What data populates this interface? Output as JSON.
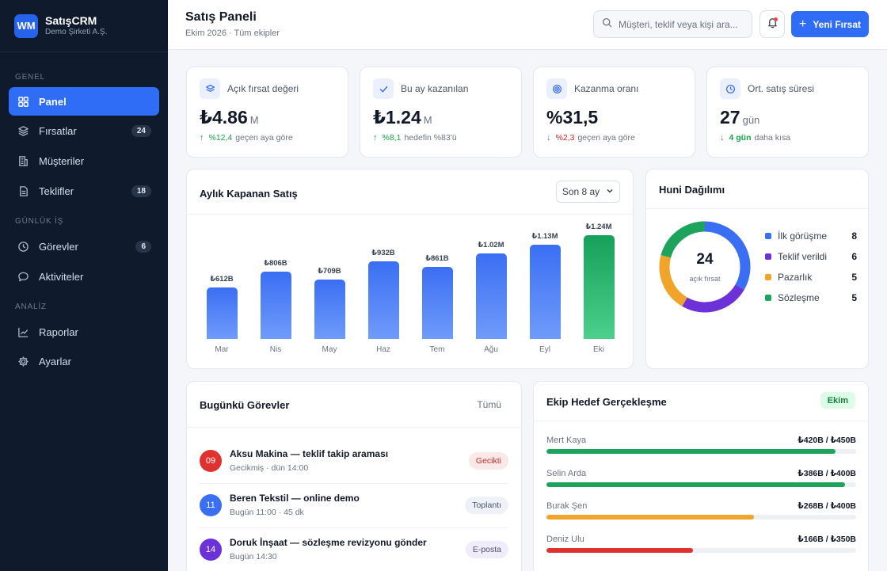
{
  "brand": {
    "logo": "WM",
    "name": "SatışCRM",
    "company": "Demo Şirketi A.Ş."
  },
  "sidebar": {
    "sections": [
      {
        "label": "GENEL"
      },
      {
        "label": "GÜNLÜK İŞ"
      },
      {
        "label": "ANALİZ"
      }
    ],
    "items": [
      {
        "label": "Panel",
        "icon": "grid-icon",
        "active": true
      },
      {
        "label": "Fırsatlar",
        "icon": "layers-icon",
        "count": "24"
      },
      {
        "label": "Müşteriler",
        "icon": "building-icon"
      },
      {
        "label": "Teklifler",
        "icon": "document-icon",
        "count": "18"
      },
      {
        "label": "Görevler",
        "icon": "clock-icon",
        "count": "6"
      },
      {
        "label": "Aktiviteler",
        "icon": "chat-icon"
      },
      {
        "label": "Raporlar",
        "icon": "chart-line-icon"
      },
      {
        "label": "Ayarlar",
        "icon": "gear-icon"
      }
    ]
  },
  "header": {
    "title": "Satış Paneli",
    "subtitle": "Ekim 2026 · Tüm ekipler",
    "search_placeholder": "Müşteri, teklif veya kişi ara...",
    "new_button": "Yeni Fırsat"
  },
  "kpis": [
    {
      "label": "Açık fırsat değeri",
      "icon": "layers-icon",
      "value": "₺4.86",
      "unit": "M",
      "trend": "up",
      "delta": "%12,4",
      "note": "geçen aya göre"
    },
    {
      "label": "Bu ay kazanılan",
      "icon": "check-icon",
      "value": "₺1.24",
      "unit": "M",
      "trend": "up",
      "delta": "%8,1",
      "note": "hedefin %83'ü"
    },
    {
      "label": "Kazanma oranı",
      "icon": "target-icon",
      "value": "%31,5",
      "unit": "",
      "trend": "down",
      "delta": "%2,3",
      "note": "geçen aya göre"
    },
    {
      "label": "Ort. satış süresi",
      "icon": "clock-icon",
      "value": "27",
      "unit": "gün",
      "trend": "down-good",
      "delta": "4 gün",
      "note": "daha kısa"
    }
  ],
  "monthly": {
    "title": "Aylık Kapanan Satış",
    "range": "Son 8 ay"
  },
  "chart_data": {
    "type": "bar",
    "title": "Aylık Kapanan Satış",
    "categories": [
      "Mar",
      "Nis",
      "May",
      "Haz",
      "Tem",
      "Ağu",
      "Eyl",
      "Eki"
    ],
    "values": [
      612,
      806,
      709,
      932,
      861,
      1020,
      1130,
      1240
    ],
    "value_labels": [
      "₺612B",
      "₺806B",
      "₺709B",
      "₺932B",
      "₺861B",
      "₺1.02M",
      "₺1.13M",
      "₺1.24M"
    ],
    "units": "₺ bin",
    "highlight_index": 7,
    "colors": {
      "bar": "#3b6ff3",
      "highlight": "#16a05a"
    }
  },
  "funnel": {
    "title": "Huni Dağılımı",
    "total": "24",
    "total_label": "açık fırsat",
    "stages": [
      {
        "name": "İlk görüşme",
        "value": 8,
        "color": "#3b6ff3"
      },
      {
        "name": "Teklif verildi",
        "value": 6,
        "color": "#6d31d8"
      },
      {
        "name": "Pazarlık",
        "value": 5,
        "color": "#f0a52a"
      },
      {
        "name": "Sözleşme",
        "value": 5,
        "color": "#1ea35d"
      }
    ]
  },
  "tasks": {
    "title": "Bugünkü Görevler",
    "all_link": "Tümü",
    "items": [
      {
        "day": "09",
        "title": "Aksu Makina — teklif takip araması",
        "sub": "Gecikmiş · dün 14:00",
        "tag": "Gecikti",
        "badge_color": "#e03131",
        "tag_bg": "#fde8e8",
        "tag_fg": "#c92a2a"
      },
      {
        "day": "11",
        "title": "Beren Tekstil — online demo",
        "sub": "Bugün 11:00 · 45 dk",
        "tag": "Toplantı",
        "badge_color": "#3b6ff3",
        "tag_bg": "#eef2f8",
        "tag_fg": "#4b5563"
      },
      {
        "day": "14",
        "title": "Doruk İnşaat — sözleşme revizyonu gönder",
        "sub": "Bugün 14:30",
        "tag": "E-posta",
        "badge_color": "#6d31d8",
        "tag_bg": "#f1ecfb",
        "tag_fg": "#4b5563"
      }
    ]
  },
  "team": {
    "title": "Ekip Hedef Gerçekleşme",
    "month": "Ekim",
    "members": [
      {
        "name": "Mert Kaya",
        "value": "₺420B / ₺450B",
        "progress": 0.933,
        "color": "#1ea35d"
      },
      {
        "name": "Selin Arda",
        "value": "₺386B / ₺400B",
        "progress": 0.965,
        "color": "#1ea35d"
      },
      {
        "name": "Burak Şen",
        "value": "₺268B / ₺400B",
        "progress": 0.67,
        "color": "#f0a52a"
      },
      {
        "name": "Deniz Ulu",
        "value": "₺166B / ₺350B",
        "progress": 0.474,
        "color": "#e03131"
      }
    ]
  }
}
